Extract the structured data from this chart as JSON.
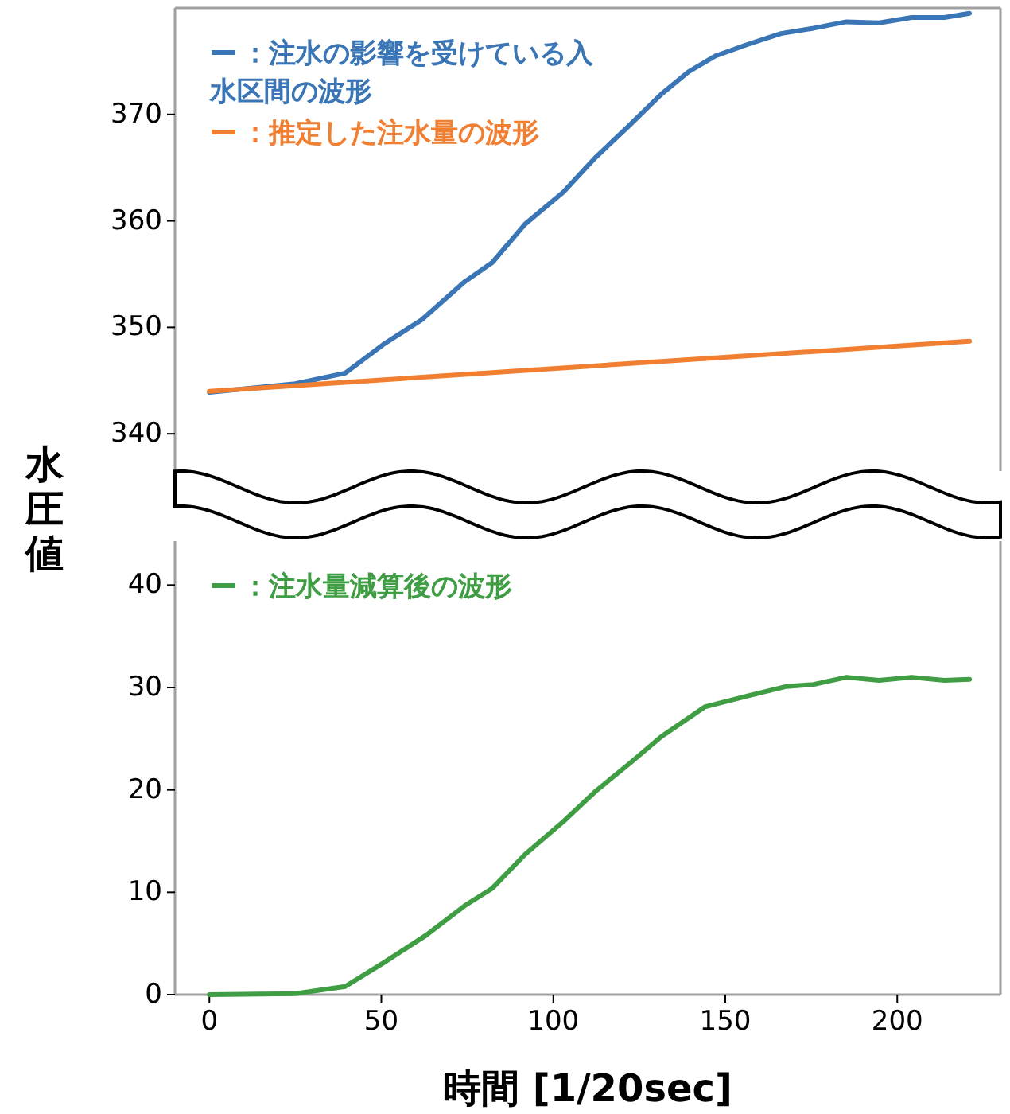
{
  "chart_data": [
    {
      "type": "line",
      "xlim": [
        -10,
        230
      ],
      "ylim": [
        336.5,
        380
      ],
      "yticks": [
        340,
        350,
        360,
        370
      ],
      "tick_labels": "y",
      "grid": false,
      "legend": "top left",
      "marker": "none",
      "line_style": "solid",
      "series": [
        {
          "name": "：注水の影響を受けている入水区間の波形",
          "color": "#3a75b5",
          "x": [
            0,
            25,
            39.5,
            50.6,
            61.7,
            74.3,
            82.3,
            91.8,
            102.9,
            112.4,
            121.9,
            131.4,
            139.3,
            147.2,
            156.7,
            166.2,
            175.7,
            185.2,
            194.7,
            204.2,
            213.7,
            221
          ],
          "values": [
            343.9,
            344.7,
            345.7,
            348.4,
            350.7,
            354.3,
            356.1,
            359.7,
            362.7,
            366.0,
            368.9,
            371.9,
            374.0,
            375.5,
            376.6,
            377.6,
            378.1,
            378.7,
            378.6,
            379.1,
            379.1,
            379.5
          ]
        },
        {
          "name": "：推定した注水量の波形",
          "color": "#f07f32",
          "x": [
            0,
            221
          ],
          "values": [
            344.0,
            348.7
          ]
        }
      ]
    },
    {
      "type": "line",
      "xlim": [
        -10,
        230
      ],
      "ylim": [
        0,
        44.3
      ],
      "xticks": [
        0,
        50,
        100,
        150,
        200
      ],
      "yticks": [
        0,
        10,
        20,
        30,
        40
      ],
      "xlabel": "時間 [1/20sec]",
      "ylabel": "水圧値",
      "grid": false,
      "legend": "top left",
      "marker": "none",
      "line_style": "solid",
      "series": [
        {
          "name": "：注水量減算後の波形",
          "color": "#3f9d44",
          "x": [
            0,
            25,
            39.5,
            50.6,
            63,
            74.3,
            82.3,
            91.8,
            102.9,
            112.4,
            121.9,
            131.4,
            144,
            156.7,
            167.8,
            175.7,
            185.2,
            194.7,
            204.2,
            213.7,
            221
          ],
          "values": [
            0,
            0.1,
            0.8,
            3.1,
            5.8,
            8.7,
            10.4,
            13.7,
            16.9,
            19.9,
            22.5,
            25.2,
            28.1,
            29.2,
            30.1,
            30.3,
            31.0,
            30.7,
            31.0,
            30.7,
            30.8
          ]
        }
      ]
    }
  ]
}
